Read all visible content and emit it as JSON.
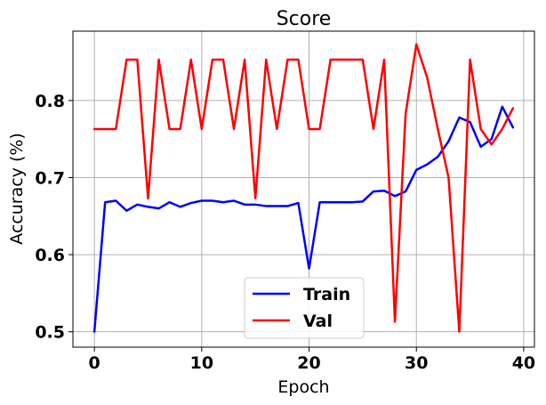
{
  "chart_data": {
    "type": "line",
    "title": "Score",
    "xlabel": "Epoch",
    "ylabel": "Accuracy (%)",
    "xlim": [
      -2,
      41
    ],
    "ylim": [
      0.48,
      0.89
    ],
    "xticks": [
      0,
      10,
      20,
      30,
      40
    ],
    "xtick_labels": [
      "0",
      "10",
      "20",
      "30",
      "40"
    ],
    "yticks": [
      0.5,
      0.6,
      0.7,
      0.8
    ],
    "ytick_labels": [
      "0.5",
      "0.6",
      "0.7",
      "0.8"
    ],
    "grid": true,
    "legend_position": "lower center",
    "x": [
      0,
      1,
      2,
      3,
      4,
      5,
      6,
      7,
      8,
      9,
      10,
      11,
      12,
      13,
      14,
      15,
      16,
      17,
      18,
      19,
      20,
      21,
      22,
      23,
      24,
      25,
      26,
      27,
      28,
      29,
      30,
      31,
      32,
      33,
      34,
      35,
      36,
      37,
      38,
      39
    ],
    "series": [
      {
        "name": "Train",
        "color": "#0000ff",
        "values": [
          0.5,
          0.668,
          0.67,
          0.657,
          0.665,
          0.662,
          0.66,
          0.668,
          0.662,
          0.667,
          0.67,
          0.67,
          0.668,
          0.67,
          0.665,
          0.665,
          0.663,
          0.663,
          0.663,
          0.667,
          0.582,
          0.668,
          0.668,
          0.668,
          0.668,
          0.669,
          0.682,
          0.683,
          0.676,
          0.682,
          0.71,
          0.717,
          0.727,
          0.747,
          0.778,
          0.772,
          0.74,
          0.75,
          0.792,
          0.765
        ]
      },
      {
        "name": "Val",
        "color": "#ff0000",
        "values": [
          0.763,
          0.763,
          0.763,
          0.853,
          0.853,
          0.673,
          0.853,
          0.763,
          0.763,
          0.853,
          0.763,
          0.853,
          0.853,
          0.763,
          0.853,
          0.673,
          0.853,
          0.763,
          0.853,
          0.853,
          0.763,
          0.763,
          0.853,
          0.853,
          0.853,
          0.853,
          0.763,
          0.853,
          0.513,
          0.783,
          0.873,
          0.83,
          0.763,
          0.7,
          0.5,
          0.853,
          0.763,
          0.743,
          0.763,
          0.79
        ]
      }
    ]
  }
}
